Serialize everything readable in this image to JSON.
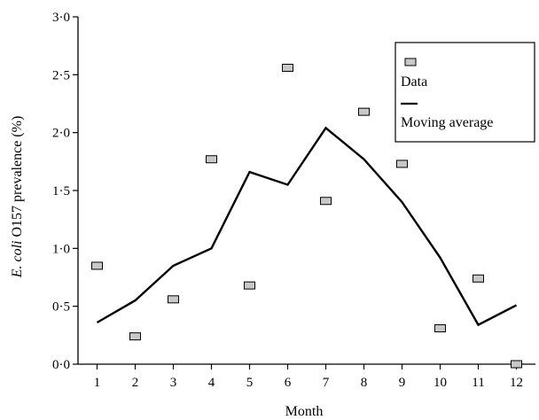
{
  "chart_data": {
    "type": "scatter",
    "x": [
      1,
      2,
      3,
      4,
      5,
      6,
      7,
      8,
      9,
      10,
      11,
      12
    ],
    "xlabel": "Month",
    "ylabel_italic": "E. coli",
    "ylabel_rest": " O157 prevalence (%)",
    "xlim": [
      0.5,
      12.5
    ],
    "ylim": [
      0,
      3
    ],
    "xticks": [
      "1",
      "2",
      "3",
      "4",
      "5",
      "6",
      "7",
      "8",
      "9",
      "10",
      "11",
      "12"
    ],
    "yticks": [
      {
        "value": 0.0,
        "label": "0·0"
      },
      {
        "value": 0.5,
        "label": "0·5"
      },
      {
        "value": 1.0,
        "label": "1·0"
      },
      {
        "value": 1.5,
        "label": "1·5"
      },
      {
        "value": 2.0,
        "label": "2·0"
      },
      {
        "value": 2.5,
        "label": "2·5"
      },
      {
        "value": 3.0,
        "label": "3·0"
      }
    ],
    "grid": false,
    "legend_position": "top-right",
    "series": [
      {
        "name": "Data",
        "kind": "markers",
        "marker_color": "#c8c8c8",
        "values": [
          0.85,
          0.24,
          0.56,
          1.77,
          0.68,
          2.56,
          1.41,
          2.18,
          1.73,
          0.31,
          0.74,
          0.0
        ]
      },
      {
        "name": "Moving average",
        "kind": "line",
        "line_color": "#000000",
        "values": [
          0.36,
          0.55,
          0.85,
          1.0,
          1.66,
          1.55,
          2.04,
          1.77,
          1.4,
          0.92,
          0.34,
          0.51
        ]
      }
    ]
  }
}
